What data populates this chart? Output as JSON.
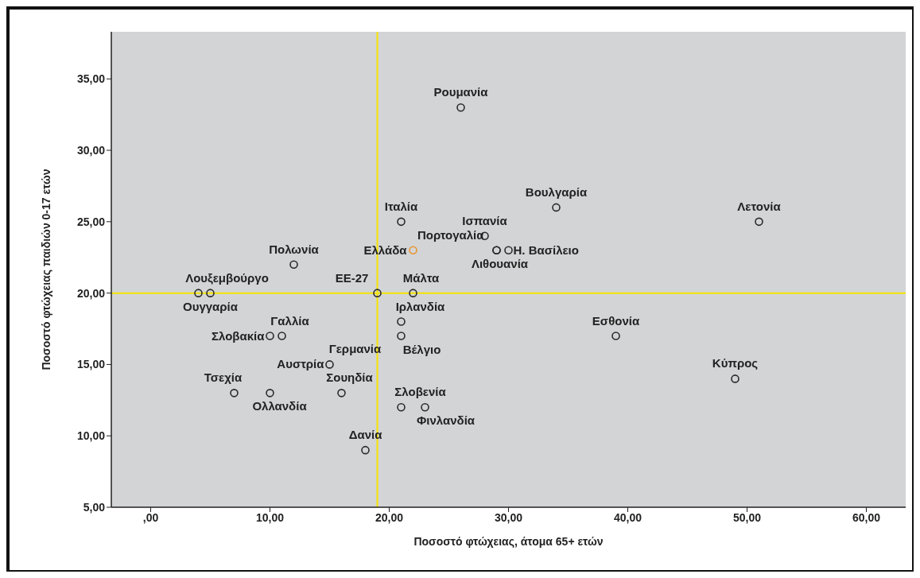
{
  "chart_data": {
    "type": "scatter",
    "xlabel": "Ποσοστό φτώχειας, άτομα 65+ ετών",
    "ylabel": "Ποσοστό φτώχειας παιδιών 0-17 ετών",
    "x": [
      26,
      21,
      28,
      34,
      51,
      29,
      30,
      29,
      22,
      12,
      4,
      5,
      19,
      22,
      21,
      21,
      10,
      11,
      15,
      7,
      10,
      16,
      21,
      23,
      18,
      39,
      49
    ],
    "values": [
      33,
      25,
      24,
      26,
      25,
      23,
      23,
      23,
      23,
      22,
      20,
      20,
      20,
      20,
      18,
      17,
      17,
      17,
      15,
      13,
      13,
      13,
      12,
      12,
      9,
      17,
      14
    ],
    "colors": [
      "#2b2b2b",
      "#2b2b2b",
      "#2b2b2b",
      "#2b2b2b",
      "#2b2b2b",
      "#2b2b2b",
      "#2b2b2b",
      "#2b2b2b",
      "#e8962f",
      "#2b2b2b",
      "#2b2b2b",
      "#2b2b2b",
      "#2b2b2b",
      "#2b2b2b",
      "#2b2b2b",
      "#2b2b2b",
      "#2b2b2b",
      "#2b2b2b",
      "#2b2b2b",
      "#2b2b2b",
      "#2b2b2b",
      "#2b2b2b",
      "#2b2b2b",
      "#2b2b2b",
      "#2b2b2b",
      "#2b2b2b",
      "#2b2b2b"
    ],
    "marker": "circle",
    "grid": false,
    "legend": false,
    "xlim": [
      -3.3,
      63.3
    ],
    "xticks": [
      {
        "value": 0,
        "label": ",00"
      },
      {
        "value": 10,
        "label": "10,00"
      },
      {
        "value": 20,
        "label": "20,00"
      },
      {
        "value": 30,
        "label": "30,00"
      },
      {
        "value": 40,
        "label": "40,00"
      },
      {
        "value": 50,
        "label": "50,00"
      },
      {
        "value": 60,
        "label": "60,00"
      }
    ],
    "ylim": [
      5,
      38.3
    ],
    "yticks": [
      {
        "value": 5,
        "label": "5,00"
      },
      {
        "value": 10,
        "label": "10,00"
      },
      {
        "value": 15,
        "label": "15,00"
      },
      {
        "value": 20,
        "label": "20,00"
      },
      {
        "value": 25,
        "label": "25,00"
      },
      {
        "value": 30,
        "label": "30,00"
      },
      {
        "value": 35,
        "label": "35,00"
      }
    ],
    "ref_lines": [
      {
        "axis": "x",
        "value": 19,
        "color": "#f5e400"
      },
      {
        "axis": "y",
        "value": 20,
        "color": "#f5e400"
      }
    ],
    "annotations": [
      {
        "text": "Ρουμανία",
        "x": 26,
        "y": 33
      },
      {
        "text": "Ιταλία",
        "x": 21,
        "y": 25
      },
      {
        "text": "Ισπανία",
        "x": 28,
        "y": 24
      },
      {
        "text": "Βουλγαρία",
        "x": 34,
        "y": 26
      },
      {
        "text": "Λετονία",
        "x": 51,
        "y": 25
      },
      {
        "text": "Πορτογαλία",
        "x": 29,
        "y": 23
      },
      {
        "text": "Η. Βασίλειο",
        "x": 30,
        "y": 23
      },
      {
        "text": "Λιθουανία",
        "x": 29,
        "y": 23
      },
      {
        "text": "Ελλάδα",
        "x": 22,
        "y": 23
      },
      {
        "text": "Πολωνία",
        "x": 12,
        "y": 22
      },
      {
        "text": "Λουξεμβούργο",
        "x": 4,
        "y": 20
      },
      {
        "text": "Ουγγαρία",
        "x": 5,
        "y": 20
      },
      {
        "text": "ΕΕ-27",
        "x": 19,
        "y": 20
      },
      {
        "text": "Μάλτα",
        "x": 22,
        "y": 20
      },
      {
        "text": "Ιρλανδία",
        "x": 21,
        "y": 18
      },
      {
        "text": "Βέλγιο",
        "x": 21,
        "y": 17
      },
      {
        "text": "Σλοβακία",
        "x": 10,
        "y": 17
      },
      {
        "text": "Γαλλία",
        "x": 11,
        "y": 17
      },
      {
        "text": "Γερμανία",
        "x": 15,
        "y": 15
      },
      {
        "text": "Αυστρία",
        "x": 15,
        "y": 15
      },
      {
        "text": "Τσεχία",
        "x": 7,
        "y": 13
      },
      {
        "text": "Ολλανδία",
        "x": 10,
        "y": 13
      },
      {
        "text": "Σουηδία",
        "x": 16,
        "y": 13
      },
      {
        "text": "Σλοβενία",
        "x": 21,
        "y": 12
      },
      {
        "text": "Φινλανδία",
        "x": 23,
        "y": 12
      },
      {
        "text": "Δανία",
        "x": 18,
        "y": 9
      },
      {
        "text": "Εσθονία",
        "x": 39,
        "y": 17
      },
      {
        "text": "Κύπρος",
        "x": 49,
        "y": 14
      }
    ]
  }
}
